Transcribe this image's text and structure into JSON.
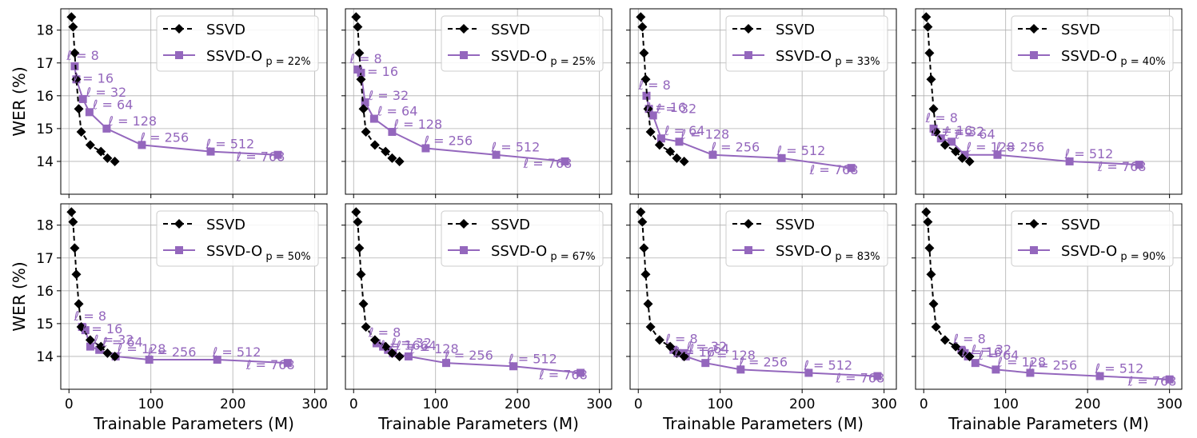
{
  "figure": {
    "ylabel": "WER (%)",
    "xlabel": "Trainable Parameters (M)",
    "xlim": [
      -10,
      315
    ],
    "ylim": [
      13.0,
      18.65
    ],
    "xticks": [
      0,
      100,
      200,
      300
    ],
    "yticks": [
      14,
      15,
      16,
      17,
      18
    ],
    "grid": true,
    "legend_position": "top-right",
    "colors": {
      "baseline": "#000000",
      "ours": "#9467bd",
      "grid": "#b0b0b0"
    }
  },
  "legend": {
    "baseline": "SSVD",
    "ours_prefix": "SSVD-O"
  },
  "ssvd": {
    "name": "SSVD",
    "x": [
      3,
      5,
      7,
      9,
      12,
      15,
      26,
      39,
      47,
      56
    ],
    "y": [
      18.4,
      18.1,
      17.3,
      16.5,
      15.6,
      14.9,
      14.5,
      14.3,
      14.1,
      14.0
    ]
  },
  "chart_data": [
    {
      "type": "line",
      "p_label": "p = 22%",
      "series": [
        {
          "name": "SSVD-O",
          "x": [
            7,
            9,
            17,
            25,
            46,
            89,
            173,
            255
          ],
          "y": [
            16.9,
            16.5,
            15.9,
            15.5,
            15.0,
            14.5,
            14.3,
            14.2
          ]
        }
      ],
      "annotations": [
        "ℓ = 8",
        "ℓ = 16",
        "ℓ = 32",
        "ℓ = 64",
        "ℓ = 128",
        "ℓ = 256",
        "ℓ = 512",
        "ℓ = 768"
      ]
    },
    {
      "type": "line",
      "p_label": "p = 25%",
      "series": [
        {
          "name": "SSVD-O",
          "x": [
            5,
            9,
            14,
            25,
            47,
            88,
            174,
            258
          ],
          "y": [
            16.8,
            16.7,
            15.8,
            15.3,
            14.9,
            14.4,
            14.2,
            14.0
          ]
        }
      ],
      "annotations": [
        "ℓ = 8",
        "ℓ = 16",
        "ℓ = 32",
        "ℓ = 64",
        "ℓ = 128",
        "ℓ = 256",
        "ℓ = 512",
        "ℓ = 768"
      ]
    },
    {
      "type": "line",
      "p_label": "p = 33%",
      "series": [
        {
          "name": "SSVD-O",
          "x": [
            10,
            13,
            18,
            28,
            50,
            91,
            175,
            260
          ],
          "y": [
            16.0,
            15.6,
            15.4,
            14.7,
            14.6,
            14.2,
            14.1,
            13.8
          ]
        }
      ],
      "annotations": [
        "ℓ = 8",
        "ℓ = 16",
        "ℓ = 32",
        "ℓ = 64",
        "ℓ = 128",
        "ℓ = 256",
        "ℓ = 512",
        "ℓ = 768"
      ]
    },
    {
      "type": "line",
      "p_label": "p = 40%",
      "series": [
        {
          "name": "SSVD-O",
          "x": [
            12,
            14,
            21,
            34,
            50,
            90,
            178,
            263
          ],
          "y": [
            15.0,
            14.9,
            14.7,
            14.6,
            14.2,
            14.2,
            14.0,
            13.9
          ]
        }
      ],
      "annotations": [
        "ℓ = 8",
        "ℓ = 16",
        "ℓ = 32",
        "ℓ = 64",
        "ℓ = 128",
        "ℓ = 256",
        "ℓ = 512",
        "ℓ = 768"
      ]
    },
    {
      "type": "line",
      "p_label": "p = 50%",
      "series": [
        {
          "name": "SSVD-O",
          "x": [
            16,
            20,
            26,
            37,
            57,
            98,
            181,
            267
          ],
          "y": [
            14.9,
            14.8,
            14.3,
            14.2,
            14.0,
            13.9,
            13.9,
            13.8
          ]
        }
      ],
      "annotations": [
        "ℓ = 8",
        "ℓ = 16",
        "ℓ = 32",
        "ℓ = 64",
        "ℓ = 128",
        "ℓ = 256",
        "ℓ = 512",
        "ℓ = 768"
      ]
    },
    {
      "type": "line",
      "p_label": "p = 67%",
      "series": [
        {
          "name": "SSVD-O",
          "x": [
            28,
            36,
            42,
            48,
            67,
            113,
            195,
            277
          ],
          "y": [
            14.4,
            14.3,
            14.2,
            14.1,
            14.0,
            13.8,
            13.7,
            13.5
          ]
        }
      ],
      "annotations": [
        "ℓ = 8",
        "ℓ = 16",
        "ℓ = 32",
        "ℓ = 64",
        "ℓ = 128",
        "ℓ = 256",
        "ℓ = 512",
        "ℓ = 768"
      ]
    },
    {
      "type": "line",
      "p_label": "p = 83%",
      "series": [
        {
          "name": "SSVD-O",
          "x": [
            43,
            48,
            55,
            58,
            82,
            125,
            208,
            292
          ],
          "y": [
            14.2,
            14.1,
            14.1,
            14.0,
            13.8,
            13.6,
            13.5,
            13.4
          ]
        }
      ],
      "annotations": [
        "ℓ = 8",
        "ℓ = 16",
        "ℓ = 32",
        "ℓ = 64",
        "ℓ = 128",
        "ℓ = 256",
        "ℓ = 512",
        "ℓ = 768"
      ]
    },
    {
      "type": "line",
      "p_label": "p = 90%",
      "series": [
        {
          "name": "SSVD-O",
          "x": [
            46,
            50,
            54,
            63,
            88,
            130,
            215,
            300
          ],
          "y": [
            14.2,
            14.1,
            14.0,
            13.8,
            13.6,
            13.5,
            13.4,
            13.3
          ]
        }
      ],
      "annotations": [
        "ℓ = 8",
        "ℓ = 16",
        "ℓ = 32",
        "ℓ = 64",
        "ℓ = 128",
        "ℓ = 256",
        "ℓ = 512",
        "ℓ = 768"
      ]
    }
  ]
}
